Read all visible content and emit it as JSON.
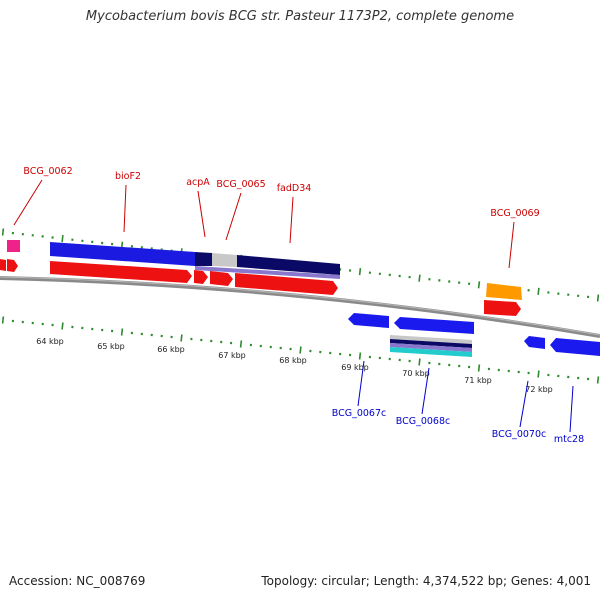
{
  "title": "Mycobacterium bovis BCG str. Pasteur 1173P2, complete genome",
  "footer": {
    "accession": "Accession: NC_008769",
    "summary": "Topology: circular; Length: 4,374,522 bp; Genes: 4,001"
  },
  "scale_labels": [
    "64 kbp",
    "65 kbp",
    "66 kbp",
    "67 kbp",
    "68 kbp",
    "69 kbp",
    "70 kbp",
    "71 kbp",
    "72 kbp"
  ],
  "forward_gene_labels": [
    "BCG_0062",
    "bioF2",
    "acpA",
    "BCG_0065",
    "fadD34",
    "BCG_0069"
  ],
  "reverse_gene_labels": [
    "BCG_0067c",
    "BCG_0068c",
    "BCG_0070c",
    "mtc28"
  ],
  "colors": {
    "backbone": "#8a8a8a",
    "tick": "#2e8b2e",
    "forward_label": "#cc0000",
    "reverse_label": "#0000cc",
    "cds_forward": "#ee1111",
    "cds_reverse": "#1a1aee",
    "gene_blue": "#1a1ae0",
    "pink": "#ee2288",
    "orange": "#ff9900",
    "navy": "#0a0a66",
    "lavender": "#8877cc",
    "grey": "#c8c8c8",
    "cyan": "#22cccc"
  }
}
